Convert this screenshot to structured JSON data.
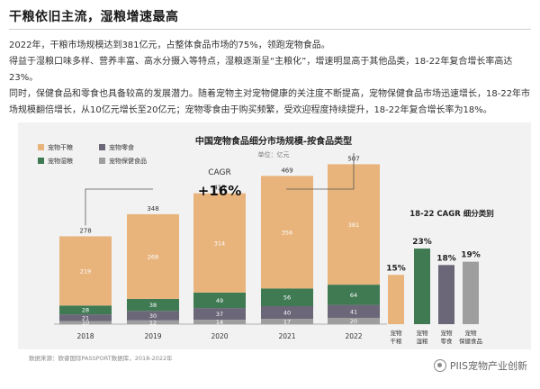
{
  "header": {
    "title": "干粮依旧主流，湿粮增速最高"
  },
  "body": {
    "para1": "2022年，干粮市场规模达到381亿元，占整体食品市场的75%，领跑宠物食品。",
    "para2": "得益于湿粮口味多样、营养丰富、高水分摄入等特点，湿粮逐渐呈“主粮化”，增速明显高于其他品类，18-22年复合增长率高达23%。",
    "para3": "同时，保健食品和零食也具备较高的发展潜力。随着宠物主对宠物健康的关注度不断提高，宠物保健食品市场迅速增长，18-22年市场规模翻倍增长，从10亿元增长至20亿元；宠物零食由于购买频繁，受欢迎程度持续提升，18-22年复合增长率为18%。"
  },
  "footer": {
    "source": "数据来源：欧睿国际PASSPORT数据库，2018-2022年",
    "watermark": "PIIS宠物产业创新"
  },
  "colors": {
    "dry": "#E8B47C",
    "wet": "#3F7A53",
    "treats": "#6B6778",
    "health": "#9E9E9E",
    "panel": "#F2F2F2"
  },
  "chart_data": [
    {
      "type": "bar",
      "stacked": true,
      "title": "中国宠物食品细分市场规模-按食品类型",
      "subtitle": "单位：亿元",
      "categories": [
        "2018",
        "2019",
        "2020",
        "2021",
        "2022"
      ],
      "series": [
        {
          "name": "宠物保健食品",
          "color": "#9E9E9E",
          "values": [
            10,
            12,
            14,
            17,
            20
          ]
        },
        {
          "name": "宠物零食",
          "color": "#6B6778",
          "values": [
            21,
            30,
            37,
            40,
            41
          ]
        },
        {
          "name": "宠物湿粮",
          "color": "#3F7A53",
          "values": [
            28,
            38,
            49,
            56,
            64
          ]
        },
        {
          "name": "宠物干粮",
          "color": "#E8B47C",
          "values": [
            219,
            268,
            314,
            356,
            381
          ]
        }
      ],
      "totals": [
        278,
        348,
        415,
        469,
        507
      ],
      "legend_order": [
        "宠物干粮",
        "宠物零食",
        "宠物湿粮",
        "宠物保健食品"
      ],
      "legend_position": "top-left",
      "annotation": {
        "label": "CAGR",
        "value": "+16%"
      },
      "ylim": [
        0,
        520
      ],
      "grid": false
    },
    {
      "type": "bar",
      "title": "18-22 CAGR 细分类别",
      "categories": [
        "宠物干粮",
        "宠物湿粮",
        "宠物零食",
        "宠物保健食品"
      ],
      "values": [
        15,
        23,
        18,
        19
      ],
      "value_labels": [
        "15%",
        "23%",
        "18%",
        "19%"
      ],
      "colors": [
        "#E8B47C",
        "#3F7A53",
        "#6B6778",
        "#9E9E9E"
      ],
      "ylim": [
        0,
        25
      ]
    }
  ]
}
